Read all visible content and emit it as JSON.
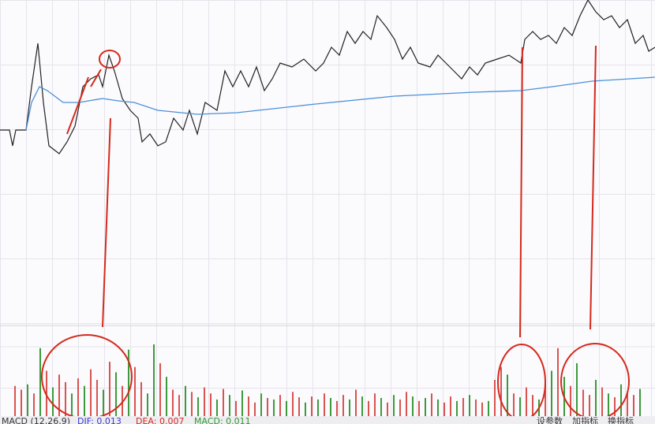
{
  "price_chart": {
    "type": "line",
    "xlim": [
      0,
      830
    ],
    "ylim": [
      0,
      410
    ],
    "series": [
      {
        "color": "#222222",
        "x": [
          0,
          12,
          16,
          20,
          33,
          40,
          48,
          55,
          62,
          75,
          85,
          95,
          105,
          115,
          125,
          130,
          138,
          145,
          155,
          165,
          175,
          180,
          190,
          200,
          210,
          220,
          232,
          240,
          250,
          260,
          275,
          285,
          295,
          305,
          315,
          325,
          335,
          345,
          355,
          370,
          385,
          400,
          410,
          420,
          430,
          440,
          450,
          460,
          470,
          478,
          490,
          500,
          510,
          520,
          530,
          545,
          555,
          565,
          575,
          585,
          595,
          605,
          615,
          630,
          645,
          660,
          665,
          675,
          685,
          695,
          705,
          715,
          725,
          735,
          745,
          755,
          765,
          775,
          785,
          795,
          805,
          815,
          822,
          830
        ],
        "values": [
          245,
          245,
          225,
          245,
          245,
          300,
          355,
          280,
          225,
          215,
          230,
          250,
          300,
          310,
          315,
          300,
          340,
          320,
          285,
          270,
          260,
          230,
          240,
          225,
          230,
          260,
          245,
          270,
          240,
          280,
          270,
          320,
          300,
          320,
          300,
          325,
          295,
          310,
          330,
          325,
          335,
          320,
          330,
          350,
          340,
          370,
          355,
          370,
          360,
          390,
          375,
          360,
          335,
          350,
          330,
          325,
          340,
          330,
          320,
          310,
          325,
          315,
          330,
          335,
          340,
          330,
          360,
          370,
          360,
          365,
          355,
          375,
          365,
          390,
          410,
          395,
          385,
          390,
          375,
          385,
          355,
          365,
          345,
          350
        ]
      },
      {
        "color": "#4a90d9",
        "x": [
          33,
          40,
          50,
          60,
          80,
          100,
          130,
          150,
          170,
          200,
          250,
          300,
          400,
          500,
          600,
          660,
          700,
          750,
          830
        ],
        "values": [
          245,
          280,
          300,
          295,
          280,
          280,
          285,
          282,
          280,
          270,
          265,
          267,
          278,
          288,
          293,
          295,
          300,
          307,
          312
        ]
      }
    ]
  },
  "volume_chart": {
    "type": "bar",
    "ylim": [
      0,
      120
    ],
    "values": [
      40,
      35,
      42,
      30,
      90,
      60,
      38,
      55,
      45,
      30,
      50,
      40,
      62,
      48,
      35,
      72,
      58,
      40,
      88,
      65,
      45,
      30,
      95,
      70,
      52,
      35,
      28,
      40,
      32,
      25,
      38,
      30,
      22,
      36,
      28,
      20,
      34,
      26,
      18,
      30,
      24,
      22,
      28,
      20,
      32,
      25,
      18,
      26,
      22,
      30,
      24,
      20,
      28,
      22,
      35,
      26,
      20,
      30,
      24,
      18,
      28,
      22,
      32,
      26,
      20,
      24,
      30,
      22,
      18,
      26,
      20,
      24,
      28,
      22,
      18,
      20,
      48,
      65,
      55,
      30,
      25,
      38,
      28,
      22,
      45,
      60,
      90,
      52,
      40,
      70,
      35,
      28,
      48,
      38,
      30,
      25,
      42,
      32,
      28,
      36
    ],
    "colors": [
      "#d9534f",
      "#d9534f",
      "#3c9a3c",
      "#d9534f",
      "#3c9a3c",
      "#d9534f",
      "#3c9a3c",
      "#d9534f",
      "#d9534f",
      "#3c9a3c",
      "#d9534f",
      "#3c9a3c",
      "#d9534f",
      "#d9534f",
      "#3c9a3c",
      "#d9534f",
      "#3c9a3c",
      "#d9534f",
      "#3c9a3c",
      "#d9534f",
      "#d9534f",
      "#3c9a3c",
      "#3c9a3c",
      "#d9534f",
      "#3c9a3c",
      "#d9534f",
      "#d9534f",
      "#3c9a3c",
      "#d9534f",
      "#3c9a3c",
      "#d9534f",
      "#d9534f",
      "#3c9a3c",
      "#d9534f",
      "#3c9a3c",
      "#d9534f",
      "#3c9a3c",
      "#d9534f",
      "#d9534f",
      "#3c9a3c",
      "#d9534f",
      "#3c9a3c",
      "#d9534f",
      "#3c9a3c",
      "#d9534f",
      "#d9534f",
      "#3c9a3c",
      "#d9534f",
      "#3c9a3c",
      "#d9534f",
      "#3c9a3c",
      "#d9534f",
      "#d9534f",
      "#3c9a3c",
      "#d9534f",
      "#3c9a3c",
      "#d9534f",
      "#d9534f",
      "#3c9a3c",
      "#d9534f",
      "#3c9a3c",
      "#d9534f",
      "#d9534f",
      "#3c9a3c",
      "#d9534f",
      "#3c9a3c",
      "#d9534f",
      "#3c9a3c",
      "#d9534f",
      "#d9534f",
      "#3c9a3c",
      "#d9534f",
      "#3c9a3c",
      "#d9534f",
      "#d9534f",
      "#3c9a3c",
      "#d9534f",
      "#d9534f",
      "#3c9a3c",
      "#d9534f",
      "#3c9a3c",
      "#d9534f",
      "#d9534f",
      "#3c9a3c",
      "#d9534f",
      "#3c9a3c",
      "#d9534f",
      "#3c9a3c",
      "#d9534f",
      "#3c9a3c",
      "#d9534f",
      "#d9534f",
      "#3c9a3c",
      "#d9534f",
      "#3c9a3c",
      "#d9534f",
      "#3c9a3c",
      "#d9534f",
      "#d9534f",
      "#3c9a3c"
    ]
  },
  "status_bar": {
    "indicator": "MACD (12,26,9)",
    "dif": "DIF: 0.013",
    "dea": "DEA: 0.007",
    "macd": "MACD: 0.011",
    "buttons": [
      "设参数",
      "加指标",
      "换指标"
    ]
  }
}
